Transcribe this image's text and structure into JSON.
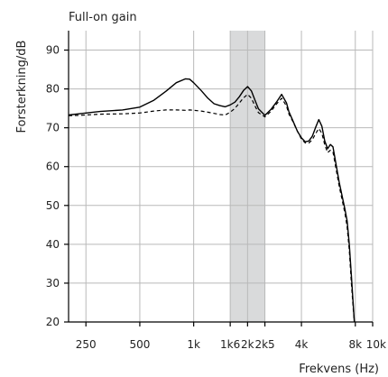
{
  "chart_data": {
    "type": "line",
    "title": "Full-on gain",
    "xlabel": "Frekvens (Hz)",
    "ylabel": "Forsterkning/dB",
    "x_scale": "log",
    "xlim": [
      200,
      10000
    ],
    "ylim": [
      20,
      95
    ],
    "grid": true,
    "x_ticks": [
      {
        "value": 250,
        "label": "250"
      },
      {
        "value": 500,
        "label": "500"
      },
      {
        "value": 1000,
        "label": "1k"
      },
      {
        "value": 1600,
        "label": "1k6"
      },
      {
        "value": 2000,
        "label": "2k"
      },
      {
        "value": 2500,
        "label": "2k5"
      },
      {
        "value": 4000,
        "label": "4k"
      },
      {
        "value": 8000,
        "label": "8k"
      },
      {
        "value": 10000,
        "label": "10k"
      }
    ],
    "y_ticks": [
      {
        "value": 20,
        "label": "20"
      },
      {
        "value": 30,
        "label": "30"
      },
      {
        "value": 40,
        "label": "40"
      },
      {
        "value": 50,
        "label": "50"
      },
      {
        "value": 60,
        "label": "60"
      },
      {
        "value": 70,
        "label": "70"
      },
      {
        "value": 80,
        "label": "80"
      },
      {
        "value": 90,
        "label": "90"
      }
    ],
    "shaded_band": {
      "x": [
        1600,
        2500
      ],
      "color": "#d9dadb"
    },
    "series": [
      {
        "style": "solid",
        "x": [
          200,
          250,
          300,
          400,
          500,
          600,
          700,
          800,
          900,
          950,
          1000,
          1100,
          1200,
          1300,
          1400,
          1500,
          1600,
          1700,
          1800,
          1900,
          2000,
          2100,
          2200,
          2300,
          2500,
          2700,
          2900,
          3100,
          3300,
          3400,
          3600,
          3800,
          4000,
          4200,
          4400,
          4600,
          4800,
          5000,
          5200,
          5400,
          5600,
          5800,
          6000,
          6500,
          7000,
          7200,
          7400,
          7600,
          7800,
          7900
        ],
        "y": [
          73.3,
          73.8,
          74.2,
          74.6,
          75.3,
          77.1,
          79.4,
          81.6,
          82.6,
          82.5,
          81.6,
          79.6,
          77.6,
          76.2,
          75.7,
          75.4,
          75.9,
          76.6,
          78.0,
          79.6,
          80.6,
          79.5,
          77.1,
          74.9,
          73.2,
          74.7,
          76.6,
          78.6,
          76.4,
          74.2,
          71.6,
          69.1,
          67.4,
          66.4,
          66.6,
          67.8,
          70.1,
          72.1,
          70.4,
          66.6,
          64.6,
          65.7,
          65.1,
          56.0,
          49.0,
          46.0,
          40.0,
          32.0,
          24.0,
          20.0
        ]
      },
      {
        "style": "dashed",
        "x": [
          200,
          250,
          300,
          400,
          500,
          600,
          700,
          800,
          900,
          950,
          1000,
          1100,
          1200,
          1300,
          1400,
          1500,
          1600,
          1700,
          1800,
          1900,
          2000,
          2100,
          2200,
          2300,
          2500,
          2700,
          2900,
          3100,
          3300,
          3400,
          3600,
          3800,
          4000,
          4200,
          4400,
          4600,
          4800,
          5000,
          5200,
          5400,
          5600,
          5800,
          6000,
          6500,
          7000,
          7200,
          7400,
          7600,
          7800,
          7900
        ],
        "y": [
          73.1,
          73.3,
          73.5,
          73.6,
          73.8,
          74.3,
          74.6,
          74.6,
          74.5,
          74.6,
          74.5,
          74.3,
          74.0,
          73.7,
          73.4,
          73.3,
          74.0,
          75.0,
          76.4,
          77.7,
          78.6,
          77.6,
          75.6,
          73.9,
          72.8,
          74.2,
          76.1,
          77.6,
          75.6,
          73.6,
          71.4,
          69.1,
          67.1,
          66.1,
          66.1,
          66.9,
          68.5,
          69.8,
          68.6,
          65.6,
          63.6,
          64.2,
          63.8,
          55.0,
          48.0,
          44.5,
          38.5,
          30.0,
          23.0,
          20.0
        ]
      }
    ]
  }
}
